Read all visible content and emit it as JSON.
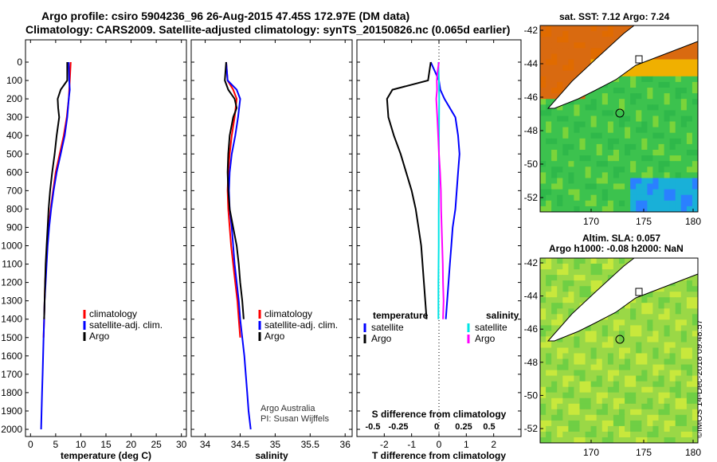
{
  "header": {
    "line1": "Argo profile: csiro 5904236_96 26-Aug-2015 47.45S 172.97E (DM data)",
    "line2": "Climatology: CARS2009. Satellite-adjusted climatology: synTS_20150826.nc (0.065d earlier)"
  },
  "colors": {
    "climatology": "#ff0000",
    "satellite": "#0000ff",
    "argo": "#000000",
    "sat_salinity": "#00e5e5",
    "argo_salinity_diff": "#ff00ff"
  },
  "chart_data": [
    {
      "type": "line",
      "xlabel": "temperature (deg C)",
      "xlim": [
        -1,
        31
      ],
      "x_ticks": [
        "0",
        "5",
        "10",
        "15",
        "20",
        "25",
        "30"
      ],
      "ylim": [
        0,
        2050
      ],
      "y_ticks": [
        "0",
        "100",
        "200",
        "300",
        "400",
        "500",
        "600",
        "700",
        "800",
        "900",
        "1000",
        "1100",
        "1200",
        "1300",
        "1400",
        "1500",
        "1600",
        "1700",
        "1800",
        "1900",
        "2000"
      ],
      "legend": [
        "climatology",
        "satellite-adj. clim.",
        "Argo"
      ],
      "series": [
        {
          "name": "climatology",
          "color": "#ff0000",
          "points": [
            [
              8.0,
              0
            ],
            [
              7.8,
              100
            ],
            [
              7.6,
              200
            ],
            [
              7.2,
              300
            ],
            [
              6.6,
              400
            ],
            [
              5.8,
              500
            ],
            [
              5.0,
              600
            ],
            [
              4.5,
              700
            ],
            [
              4.0,
              800
            ],
            [
              3.6,
              900
            ],
            [
              3.3,
              1000
            ],
            [
              3.1,
              1100
            ],
            [
              2.9,
              1200
            ],
            [
              2.8,
              1300
            ],
            [
              2.7,
              1400
            ],
            [
              2.6,
              1500
            ]
          ]
        },
        {
          "name": "satellite-adj. clim.",
          "color": "#0000ff",
          "points": [
            [
              7.6,
              0
            ],
            [
              7.7,
              100
            ],
            [
              7.8,
              150
            ],
            [
              7.6,
              200
            ],
            [
              7.3,
              300
            ],
            [
              6.8,
              400
            ],
            [
              6.0,
              500
            ],
            [
              5.2,
              600
            ],
            [
              4.6,
              700
            ],
            [
              4.1,
              800
            ],
            [
              3.7,
              900
            ],
            [
              3.4,
              1000
            ],
            [
              3.2,
              1100
            ],
            [
              3.0,
              1200
            ],
            [
              2.8,
              1300
            ],
            [
              2.7,
              1400
            ],
            [
              2.6,
              1500
            ],
            [
              2.5,
              1600
            ],
            [
              2.4,
              1700
            ],
            [
              2.3,
              1800
            ],
            [
              2.2,
              1900
            ],
            [
              2.1,
              2000
            ]
          ]
        },
        {
          "name": "Argo",
          "color": "#000000",
          "points": [
            [
              7.3,
              0
            ],
            [
              7.3,
              100
            ],
            [
              6.0,
              150
            ],
            [
              5.4,
              200
            ],
            [
              5.5,
              250
            ],
            [
              5.7,
              300
            ],
            [
              5.2,
              400
            ],
            [
              4.8,
              500
            ],
            [
              4.3,
              600
            ],
            [
              3.9,
              700
            ],
            [
              3.6,
              800
            ],
            [
              3.4,
              900
            ],
            [
              3.2,
              1000
            ],
            [
              3.0,
              1100
            ],
            [
              2.9,
              1200
            ],
            [
              2.8,
              1300
            ],
            [
              2.7,
              1400
            ]
          ]
        }
      ]
    },
    {
      "type": "line",
      "xlabel": "salinity",
      "xlim": [
        33.8,
        36.1
      ],
      "x_ticks": [
        "34",
        "34.5",
        "35",
        "35.5",
        "36"
      ],
      "ylim": [
        0,
        2050
      ],
      "legend": [
        "climatology",
        "satellite-adj. clim.",
        "Argo"
      ],
      "annotations": [
        "Argo Australia",
        "PI: Susan Wijffels"
      ],
      "series": [
        {
          "name": "climatology",
          "color": "#ff0000",
          "points": [
            [
              34.3,
              0
            ],
            [
              34.32,
              100
            ],
            [
              34.4,
              150
            ],
            [
              34.45,
              200
            ],
            [
              34.42,
              300
            ],
            [
              34.38,
              400
            ],
            [
              34.35,
              500
            ],
            [
              34.33,
              600
            ],
            [
              34.32,
              700
            ],
            [
              34.33,
              800
            ],
            [
              34.35,
              900
            ],
            [
              34.37,
              1000
            ],
            [
              34.4,
              1100
            ],
            [
              34.43,
              1200
            ],
            [
              34.46,
              1300
            ],
            [
              34.48,
              1400
            ],
            [
              34.5,
              1500
            ]
          ]
        },
        {
          "name": "satellite-adj. clim.",
          "color": "#0000ff",
          "points": [
            [
              34.3,
              0
            ],
            [
              34.32,
              100
            ],
            [
              34.45,
              150
            ],
            [
              34.5,
              200
            ],
            [
              34.47,
              300
            ],
            [
              34.43,
              400
            ],
            [
              34.38,
              500
            ],
            [
              34.35,
              600
            ],
            [
              34.34,
              700
            ],
            [
              34.35,
              800
            ],
            [
              34.38,
              900
            ],
            [
              34.4,
              1000
            ],
            [
              34.42,
              1100
            ],
            [
              34.45,
              1200
            ],
            [
              34.48,
              1300
            ],
            [
              34.5,
              1400
            ],
            [
              34.53,
              1500
            ],
            [
              34.56,
              1600
            ],
            [
              34.58,
              1700
            ],
            [
              34.6,
              1800
            ],
            [
              34.62,
              1900
            ],
            [
              34.65,
              2000
            ]
          ]
        },
        {
          "name": "Argo",
          "color": "#000000",
          "points": [
            [
              34.3,
              0
            ],
            [
              34.28,
              100
            ],
            [
              34.33,
              150
            ],
            [
              34.42,
              200
            ],
            [
              34.45,
              250
            ],
            [
              34.4,
              300
            ],
            [
              34.35,
              400
            ],
            [
              34.33,
              500
            ],
            [
              34.32,
              600
            ],
            [
              34.33,
              700
            ],
            [
              34.35,
              800
            ],
            [
              34.4,
              900
            ],
            [
              34.45,
              1000
            ],
            [
              34.48,
              1100
            ],
            [
              34.5,
              1200
            ],
            [
              34.53,
              1300
            ],
            [
              34.55,
              1400
            ]
          ]
        }
      ]
    },
    {
      "type": "line",
      "xlabel": "T difference from climatology",
      "xlim": [
        -3,
        3
      ],
      "x_ticks": [
        "-2",
        "-1",
        "0",
        "1",
        "2"
      ],
      "top_axis_label": "S difference from climatology",
      "top_ticks": [
        "-0.5",
        "-0.25",
        "0",
        "0.25",
        "0.5"
      ],
      "ylim": [
        0,
        2050
      ],
      "legend_headers": [
        "temperature",
        "salinity"
      ],
      "legend": [
        "satellite",
        "Argo",
        "satellite",
        "Argo"
      ],
      "series": [
        {
          "name": "satellite",
          "color": "#0000ff",
          "points": [
            [
              -0.3,
              0
            ],
            [
              0,
              100
            ],
            [
              0.05,
              150
            ],
            [
              0.2,
              200
            ],
            [
              0.6,
              300
            ],
            [
              0.7,
              400
            ],
            [
              0.75,
              500
            ],
            [
              0.7,
              600
            ],
            [
              0.65,
              700
            ],
            [
              0.6,
              800
            ],
            [
              0.5,
              900
            ],
            [
              0.45,
              1000
            ],
            [
              0.4,
              1100
            ],
            [
              0.35,
              1200
            ],
            [
              0.3,
              1300
            ],
            [
              0.25,
              1400
            ]
          ]
        },
        {
          "name": "Argo",
          "color": "#000000",
          "points": [
            [
              -0.3,
              0
            ],
            [
              -0.4,
              100
            ],
            [
              -1.7,
              150
            ],
            [
              -1.9,
              200
            ],
            [
              -1.85,
              300
            ],
            [
              -1.65,
              400
            ],
            [
              -1.4,
              500
            ],
            [
              -1.2,
              600
            ],
            [
              -1.0,
              700
            ],
            [
              -0.85,
              800
            ],
            [
              -0.75,
              900
            ],
            [
              -0.65,
              1000
            ],
            [
              -0.6,
              1100
            ],
            [
              -0.55,
              1200
            ],
            [
              -0.5,
              1300
            ],
            [
              -0.45,
              1400
            ]
          ]
        },
        {
          "name": "satellite",
          "color": "#00e5e5",
          "points": [
            [
              -0.02,
              0
            ],
            [
              0,
              100
            ],
            [
              0.01,
              200
            ],
            [
              0,
              400
            ],
            [
              0,
              600
            ],
            [
              -0.01,
              800
            ],
            [
              -0.01,
              1000
            ],
            [
              -0.02,
              1200
            ],
            [
              -0.02,
              1400
            ]
          ]
        },
        {
          "name": "Argo",
          "color": "#ff00ff",
          "points": [
            [
              0,
              0
            ],
            [
              -0.05,
              50
            ],
            [
              -0.08,
              100
            ],
            [
              -0.07,
              150
            ],
            [
              -0.1,
              200
            ],
            [
              -0.06,
              300
            ],
            [
              -0.03,
              400
            ],
            [
              0,
              500
            ],
            [
              0.04,
              600
            ],
            [
              0.07,
              700
            ],
            [
              0.08,
              800
            ],
            [
              0.1,
              900
            ],
            [
              0.12,
              1000
            ],
            [
              0.14,
              1100
            ],
            [
              0.15,
              1200
            ],
            [
              0.17,
              1300
            ],
            [
              0.15,
              1400
            ]
          ]
        }
      ]
    }
  ],
  "maps": {
    "sst": {
      "title": "sat. SST: 7.12 Argo: 7.24",
      "y_ticks": [
        "-42",
        "-44",
        "-46",
        "-48",
        "-50",
        "-52"
      ],
      "x_ticks": [
        "170",
        "175",
        "180"
      ]
    },
    "sla": {
      "title_line1": "Altim. SLA: 0.057",
      "title_line2": "Argo h1000: -0.08 h2000: NaN",
      "y_ticks": [
        "-42",
        "-44",
        "-46",
        "-48",
        "-50",
        "-52"
      ],
      "x_ticks": [
        "170",
        "175",
        "180"
      ]
    }
  },
  "stamp": "©IMOS 14-Dec-2018 09:48:57"
}
